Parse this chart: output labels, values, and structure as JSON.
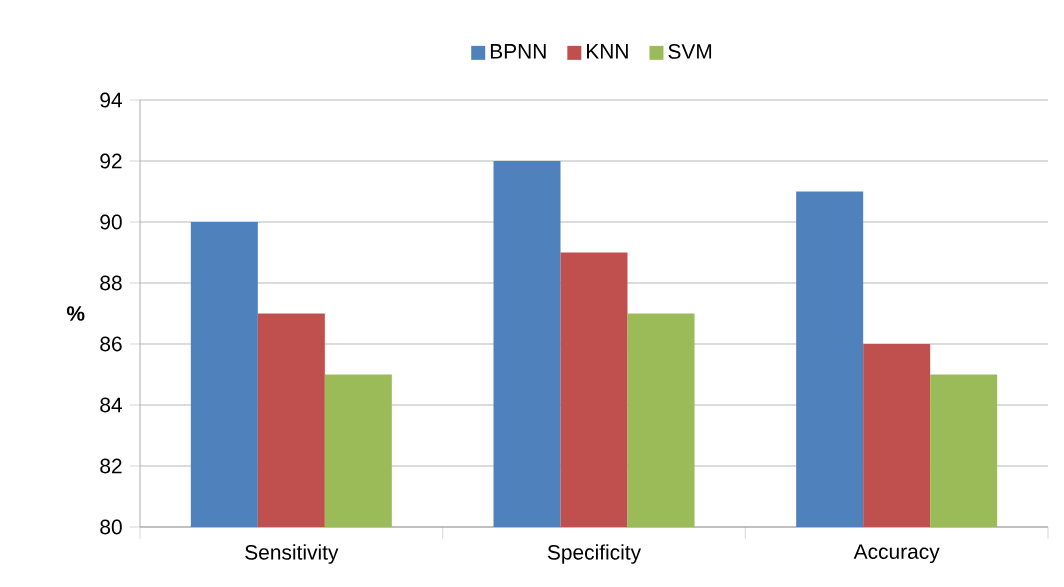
{
  "chart_data": {
    "type": "bar",
    "ylabel": "%",
    "categories": [
      "Sensitivity",
      "Specificity",
      "Accuracy"
    ],
    "series": [
      {
        "name": "BPNN",
        "color": "#4f81bd",
        "values": [
          90,
          92,
          91
        ]
      },
      {
        "name": "KNN",
        "color": "#c0504d",
        "values": [
          87,
          89,
          86
        ]
      },
      {
        "name": "SVM",
        "color": "#9bbb59",
        "values": [
          85,
          87,
          85
        ]
      }
    ],
    "ylim": [
      80,
      94
    ],
    "yticks": [
      80,
      82,
      84,
      86,
      88,
      90,
      92,
      94
    ],
    "grid": "y",
    "legend": "top"
  }
}
